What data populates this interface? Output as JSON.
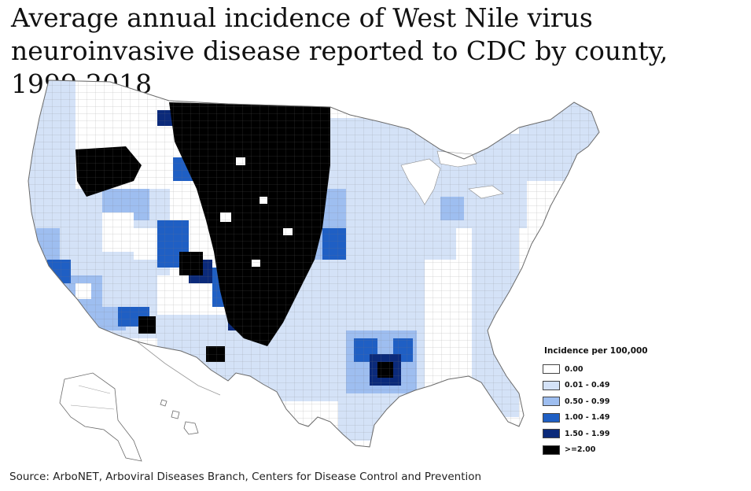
{
  "title": "Average annual incidence of West Nile virus neuroinvasive disease reported to CDC by county, 1999-2018",
  "legend": {
    "title": "Incidence per 100,000",
    "items": [
      {
        "label": "0.00",
        "color": "#ffffff"
      },
      {
        "label": "0.01 - 0.49",
        "color": "#d4e2f7"
      },
      {
        "label": "0.50 - 0.99",
        "color": "#9ebef0"
      },
      {
        "label": "1.00 - 1.49",
        "color": "#1f5fc4"
      },
      {
        "label": "1.50 - 1.99",
        "color": "#0b2a7a"
      },
      {
        "label": ">=2.00",
        "color": "#000000"
      }
    ]
  },
  "source": "Source: ArboNET, Arboviral Diseases Branch, Centers for Disease Control and Prevention"
}
